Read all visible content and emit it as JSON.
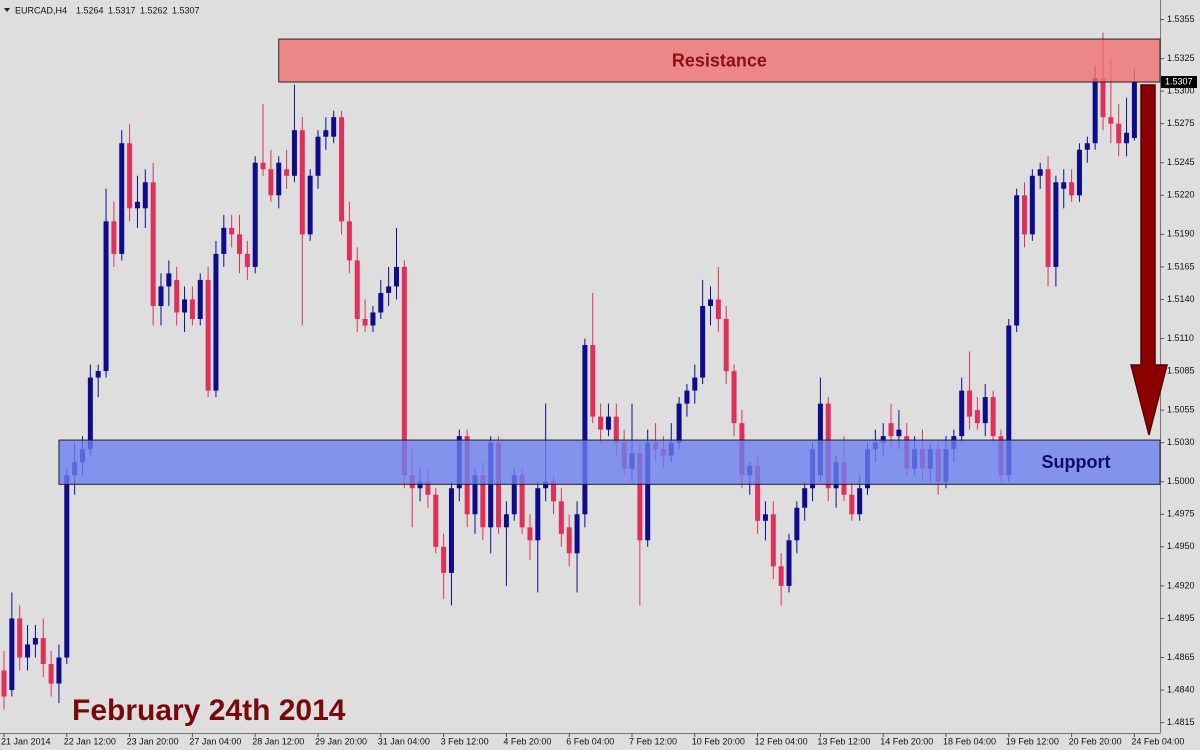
{
  "chart_data": {
    "type": "candlestick",
    "title": "EURCAD,H4",
    "annotation": "February 24th 2014",
    "up_color": "#0c0c8c",
    "down_color": "#e0305a",
    "ylim": [
      1.4807,
      1.537
    ],
    "yticks": [
      1.5355,
      1.5325,
      {
        "value": 1.53,
        "label": "1.5300"
      },
      1.5275,
      1.5245,
      {
        "value": 1.522,
        "label": "1.5220"
      },
      {
        "value": 1.519,
        "label": "1.5190"
      },
      1.5165,
      {
        "value": 1.514,
        "label": "1.5140"
      },
      {
        "value": 1.511,
        "label": "1.5110"
      },
      1.5085,
      1.5055,
      {
        "value": 1.503,
        "label": "1.5030"
      },
      {
        "value": 1.5,
        "label": "1.5000"
      },
      1.4975,
      {
        "value": 1.495,
        "label": "1.4950"
      },
      {
        "value": 1.492,
        "label": "1.4920"
      },
      1.4895,
      1.4865,
      {
        "value": 1.484,
        "label": "1.4840"
      },
      1.4815
    ],
    "zones": [
      {
        "label": "Resistance",
        "from": 1.5307,
        "to": 1.534,
        "start": 35,
        "color": "#f07070"
      },
      {
        "label": "Support",
        "from": 1.4998,
        "to": 1.5032,
        "start": 7,
        "color": "#6b7ff0"
      }
    ],
    "categories": [
      "21 Jan 2014",
      null,
      null,
      null,
      null,
      null,
      null,
      null,
      "22 Jan 12:00",
      null,
      null,
      null,
      null,
      null,
      null,
      null,
      "23 Jan 20:00",
      null,
      null,
      null,
      null,
      null,
      null,
      null,
      "27 Jan 04:00",
      null,
      null,
      null,
      null,
      null,
      null,
      null,
      "28 Jan 12:00",
      null,
      null,
      null,
      null,
      null,
      null,
      null,
      "29 Jan 20:00",
      null,
      null,
      null,
      null,
      null,
      null,
      null,
      "31 Jan 04:00",
      null,
      null,
      null,
      null,
      null,
      null,
      null,
      "3 Feb 12:00",
      null,
      null,
      null,
      null,
      null,
      null,
      null,
      "4 Feb 20:00",
      null,
      null,
      null,
      null,
      null,
      null,
      null,
      "6 Feb 04:00",
      null,
      null,
      null,
      null,
      null,
      null,
      null,
      "7 Feb 12:00",
      null,
      null,
      null,
      null,
      null,
      null,
      null,
      "10 Feb 20:00",
      null,
      null,
      null,
      null,
      null,
      null,
      null,
      "12 Feb 04:00",
      null,
      null,
      null,
      null,
      null,
      null,
      null,
      "13 Feb 12:00",
      null,
      null,
      null,
      null,
      null,
      null,
      null,
      "14 Feb 20:00",
      null,
      null,
      null,
      null,
      null,
      null,
      null,
      "18 Feb 04:00",
      null,
      null,
      null,
      null,
      null,
      null,
      null,
      "19 Feb 12:00",
      null,
      null,
      null,
      null,
      null,
      null,
      null,
      "20 Feb 20:00",
      null,
      null,
      null,
      null,
      null,
      null,
      null,
      "24 Feb 04:00"
    ],
    "candles": [
      [
        1.4855,
        1.487,
        1.4825,
        1.4835
      ],
      [
        1.484,
        1.4915,
        1.4835,
        1.4895
      ],
      [
        1.4895,
        1.4905,
        1.4855,
        1.4865
      ],
      [
        1.4865,
        1.489,
        1.4855,
        1.4875
      ],
      [
        1.4875,
        1.489,
        1.4865,
        1.488
      ],
      [
        1.488,
        1.4895,
        1.485,
        1.486
      ],
      [
        1.486,
        1.487,
        1.4835,
        1.4845
      ],
      [
        1.4845,
        1.4875,
        1.483,
        1.4865
      ],
      [
        1.4865,
        1.501,
        1.486,
        1.5005
      ],
      [
        1.5005,
        1.503,
        1.499,
        1.5015
      ],
      [
        1.5015,
        1.5035,
        1.5005,
        1.5025
      ],
      [
        1.5025,
        1.509,
        1.502,
        1.508
      ],
      [
        1.508,
        1.509,
        1.5065,
        1.5085
      ],
      [
        1.5085,
        1.5225,
        1.508,
        1.52
      ],
      [
        1.52,
        1.5215,
        1.5165,
        1.5175
      ],
      [
        1.5175,
        1.527,
        1.517,
        1.526
      ],
      [
        1.526,
        1.5275,
        1.52,
        1.521
      ],
      [
        1.521,
        1.5235,
        1.5195,
        1.5215
      ],
      [
        1.521,
        1.524,
        1.5195,
        1.523
      ],
      [
        1.523,
        1.5245,
        1.512,
        1.5135
      ],
      [
        1.5135,
        1.516,
        1.512,
        1.515
      ],
      [
        1.515,
        1.517,
        1.5135,
        1.516
      ],
      [
        1.5155,
        1.5165,
        1.512,
        1.513
      ],
      [
        1.513,
        1.515,
        1.5115,
        1.514
      ],
      [
        1.514,
        1.515,
        1.512,
        1.5125
      ],
      [
        1.5125,
        1.516,
        1.512,
        1.5155
      ],
      [
        1.5155,
        1.5165,
        1.5065,
        1.507
      ],
      [
        1.507,
        1.5185,
        1.5065,
        1.5175
      ],
      [
        1.5175,
        1.5205,
        1.5165,
        1.5195
      ],
      [
        1.5195,
        1.5205,
        1.518,
        1.519
      ],
      [
        1.519,
        1.5205,
        1.516,
        1.5175
      ],
      [
        1.5175,
        1.5185,
        1.5155,
        1.5165
      ],
      [
        1.5165,
        1.525,
        1.516,
        1.5245
      ],
      [
        1.5245,
        1.529,
        1.5235,
        1.524
      ],
      [
        1.524,
        1.5255,
        1.5215,
        1.522
      ],
      [
        1.522,
        1.525,
        1.521,
        1.5245
      ],
      [
        1.524,
        1.5255,
        1.5225,
        1.5235
      ],
      [
        1.5235,
        1.5305,
        1.523,
        1.527
      ],
      [
        1.527,
        1.528,
        1.512,
        1.519
      ],
      [
        1.519,
        1.524,
        1.5185,
        1.5235
      ],
      [
        1.5235,
        1.527,
        1.5225,
        1.5265
      ],
      [
        1.5265,
        1.528,
        1.5255,
        1.527
      ],
      [
        1.5265,
        1.5285,
        1.526,
        1.528
      ],
      [
        1.528,
        1.5285,
        1.519,
        1.52
      ],
      [
        1.52,
        1.5215,
        1.516,
        1.517
      ],
      [
        1.517,
        1.518,
        1.5115,
        1.5125
      ],
      [
        1.5125,
        1.514,
        1.5115,
        1.512
      ],
      [
        1.512,
        1.5135,
        1.5115,
        1.513
      ],
      [
        1.513,
        1.5155,
        1.5125,
        1.5145
      ],
      [
        1.5145,
        1.5165,
        1.5135,
        1.515
      ],
      [
        1.515,
        1.5195,
        1.514,
        1.5165
      ],
      [
        1.5165,
        1.517,
        1.4995,
        1.5005
      ],
      [
        1.5005,
        1.5025,
        1.4965,
        1.4995
      ],
      [
        1.4995,
        1.501,
        1.4985,
        1.5
      ],
      [
        1.5,
        1.501,
        1.498,
        1.499
      ],
      [
        1.499,
        1.4995,
        1.4945,
        1.495
      ],
      [
        1.495,
        1.496,
        1.491,
        1.493
      ],
      [
        1.493,
        1.5,
        1.4905,
        1.4995
      ],
      [
        1.4995,
        1.504,
        1.4985,
        1.5035
      ],
      [
        1.5035,
        1.504,
        1.4965,
        1.4975
      ],
      [
        1.4975,
        1.501,
        1.496,
        1.5005
      ],
      [
        1.5005,
        1.5015,
        1.4955,
        1.4965
      ],
      [
        1.4965,
        1.5035,
        1.4945,
        1.503
      ],
      [
        1.503,
        1.5035,
        1.496,
        1.4965
      ],
      [
        1.4965,
        1.4985,
        1.492,
        1.4975
      ],
      [
        1.4975,
        1.501,
        1.497,
        1.5005
      ],
      [
        1.5005,
        1.501,
        1.496,
        1.4965
      ],
      [
        1.4965,
        1.4975,
        1.494,
        1.4955
      ],
      [
        1.4955,
        1.5,
        1.4915,
        1.4995
      ],
      [
        1.4995,
        1.506,
        1.4985,
        1.5
      ],
      [
        1.5,
        1.5005,
        1.4975,
        1.4985
      ],
      [
        1.4985,
        1.4995,
        1.495,
        1.496
      ],
      [
        1.4965,
        1.4975,
        1.4935,
        1.4945
      ],
      [
        1.4945,
        1.4985,
        1.4915,
        1.4975
      ],
      [
        1.4975,
        1.511,
        1.4965,
        1.5105
      ],
      [
        1.5105,
        1.5145,
        1.5045,
        1.505
      ],
      [
        1.505,
        1.506,
        1.503,
        1.504
      ],
      [
        1.504,
        1.506,
        1.5035,
        1.505
      ],
      [
        1.505,
        1.506,
        1.502,
        1.503
      ],
      [
        1.503,
        1.504,
        1.5005,
        1.501
      ],
      [
        1.501,
        1.506,
        1.5,
        1.5022
      ],
      [
        1.5022,
        1.503,
        1.4905,
        1.4955
      ],
      [
        1.4955,
        1.504,
        1.495,
        1.503
      ],
      [
        1.503,
        1.5045,
        1.5015,
        1.5025
      ],
      [
        1.5025,
        1.5035,
        1.501,
        1.502
      ],
      [
        1.502,
        1.5045,
        1.5015,
        1.503
      ],
      [
        1.503,
        1.5065,
        1.5025,
        1.506
      ],
      [
        1.506,
        1.5075,
        1.505,
        1.507
      ],
      [
        1.507,
        1.509,
        1.506,
        1.508
      ],
      [
        1.508,
        1.5155,
        1.5075,
        1.5135
      ],
      [
        1.5135,
        1.515,
        1.512,
        1.514
      ],
      [
        1.514,
        1.5165,
        1.5115,
        1.5125
      ],
      [
        1.5125,
        1.5135,
        1.5075,
        1.5085
      ],
      [
        1.5085,
        1.509,
        1.5035,
        1.5045
      ],
      [
        1.5045,
        1.5055,
        1.4995,
        1.5005
      ],
      [
        1.5005,
        1.5015,
        1.499,
        1.5012
      ],
      [
        1.5012,
        1.502,
        1.496,
        1.497
      ],
      [
        1.497,
        1.4985,
        1.4955,
        1.4975
      ],
      [
        1.4975,
        1.4985,
        1.4925,
        1.4935
      ],
      [
        1.4935,
        1.4945,
        1.4905,
        1.492
      ],
      [
        1.492,
        1.496,
        1.4915,
        1.4955
      ],
      [
        1.4955,
        1.4985,
        1.4945,
        1.498
      ],
      [
        1.498,
        1.5,
        1.497,
        1.4995
      ],
      [
        1.4995,
        1.503,
        1.4985,
        1.5025
      ],
      [
        1.5005,
        1.508,
        1.5,
        1.506
      ],
      [
        1.506,
        1.5065,
        1.4985,
        1.4995
      ],
      [
        1.4995,
        1.502,
        1.498,
        1.5015
      ],
      [
        1.5015,
        1.5035,
        1.4985,
        1.499
      ],
      [
        1.499,
        1.5,
        1.497,
        1.4975
      ],
      [
        1.4975,
        1.5005,
        1.497,
        1.4995
      ],
      [
        1.4995,
        1.503,
        1.499,
        1.5025
      ],
      [
        1.5025,
        1.504,
        1.5015,
        1.503
      ],
      [
        1.503,
        1.5045,
        1.502,
        1.5035
      ],
      [
        1.5045,
        1.506,
        1.5025,
        1.5035
      ],
      [
        1.5035,
        1.5055,
        1.5025,
        1.504
      ],
      [
        1.5035,
        1.5045,
        1.5005,
        1.501
      ],
      [
        1.501,
        1.5035,
        1.5005,
        1.5025
      ],
      [
        1.5025,
        1.504,
        1.5,
        1.501
      ],
      [
        1.501,
        1.503,
        1.5,
        1.5025
      ],
      [
        1.5025,
        1.503,
        1.499,
        1.5
      ],
      [
        1.5,
        1.5035,
        1.4995,
        1.5025
      ],
      [
        1.5025,
        1.504,
        1.5015,
        1.5035
      ],
      [
        1.5035,
        1.508,
        1.503,
        1.507
      ],
      [
        1.507,
        1.51,
        1.504,
        1.505
      ],
      [
        1.5055,
        1.5065,
        1.504,
        1.5045
      ],
      [
        1.5045,
        1.5075,
        1.5035,
        1.5065
      ],
      [
        1.5065,
        1.507,
        1.503,
        1.5035
      ],
      [
        1.5035,
        1.504,
        1.5,
        1.5005
      ],
      [
        1.5005,
        1.5125,
        1.5,
        1.512
      ],
      [
        1.512,
        1.5225,
        1.5115,
        1.522
      ],
      [
        1.522,
        1.523,
        1.518,
        1.519
      ],
      [
        1.519,
        1.524,
        1.5185,
        1.5235
      ],
      [
        1.5235,
        1.5245,
        1.5225,
        1.524
      ],
      [
        1.524,
        1.525,
        1.515,
        1.5165
      ],
      [
        1.5165,
        1.5235,
        1.515,
        1.523
      ],
      [
        1.5225,
        1.524,
        1.521,
        1.523
      ],
      [
        1.523,
        1.524,
        1.5215,
        1.522
      ],
      [
        1.522,
        1.526,
        1.5215,
        1.5255
      ],
      [
        1.5255,
        1.5265,
        1.5245,
        1.526
      ],
      [
        1.526,
        1.532,
        1.5255,
        1.531
      ],
      [
        1.531,
        1.5345,
        1.527,
        1.528
      ],
      [
        1.528,
        1.5325,
        1.526,
        1.5275
      ],
      [
        1.5275,
        1.529,
        1.525,
        1.526
      ],
      [
        1.526,
        1.5295,
        1.525,
        1.5268
      ],
      [
        1.5264,
        1.5317,
        1.5262,
        1.5307
      ]
    ]
  }
}
